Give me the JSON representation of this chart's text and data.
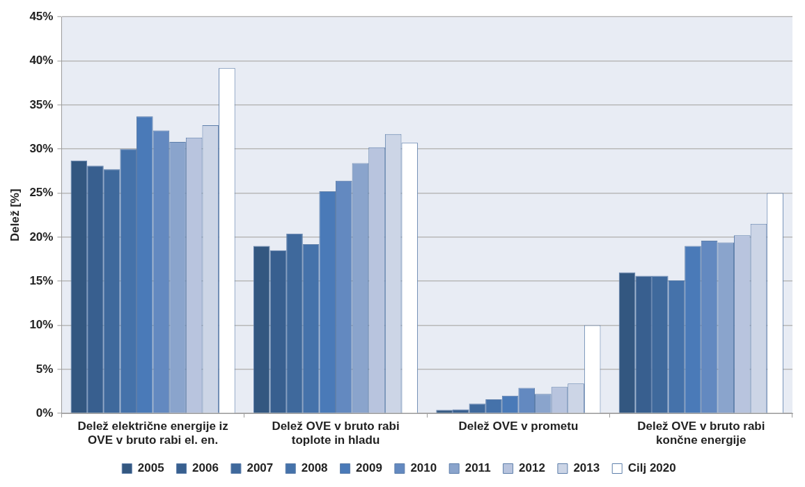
{
  "chart_data": {
    "type": "bar",
    "ylabel": "Delež [%]",
    "categories": [
      "Delež električne energije iz OVE v bruto rabi el. en.",
      "Delež OVE v bruto rabi toplote in hladu",
      "Delež OVE v prometu",
      "Delež OVE v bruto rabi končne energije"
    ],
    "series": [
      {
        "name": "2005",
        "color": "#335780",
        "values": [
          28.7,
          19.0,
          0.4,
          16.0
        ]
      },
      {
        "name": "2006",
        "color": "#385f8f",
        "values": [
          28.1,
          18.5,
          0.45,
          15.6
        ]
      },
      {
        "name": "2007",
        "color": "#3f699c",
        "values": [
          27.7,
          20.4,
          1.1,
          15.6
        ]
      },
      {
        "name": "2008",
        "color": "#4572aa",
        "values": [
          30.0,
          19.2,
          1.6,
          15.1
        ]
      },
      {
        "name": "2009",
        "color": "#4a7ab8",
        "values": [
          33.7,
          25.2,
          2.0,
          19.0
        ]
      },
      {
        "name": "2010",
        "color": "#6389c0",
        "values": [
          32.1,
          26.4,
          2.9,
          19.6
        ]
      },
      {
        "name": "2011",
        "color": "#8aa4cc",
        "values": [
          30.8,
          28.4,
          2.2,
          19.4
        ]
      },
      {
        "name": "2012",
        "color": "#b8c4de",
        "values": [
          31.3,
          30.2,
          3.0,
          20.2
        ]
      },
      {
        "name": "2013",
        "color": "#ccd5e6",
        "values": [
          32.7,
          31.7,
          3.4,
          21.5
        ]
      },
      {
        "name": "Cilj 2020",
        "color": "#ffffff",
        "values": [
          39.2,
          30.7,
          10.0,
          25.0
        ]
      }
    ],
    "ylim": [
      0,
      45
    ],
    "yticks": [
      {
        "value": 0,
        "label": "0%"
      },
      {
        "value": 5,
        "label": "5%"
      },
      {
        "value": 10,
        "label": "10%"
      },
      {
        "value": 15,
        "label": "15%"
      },
      {
        "value": 20,
        "label": "20%"
      },
      {
        "value": 25,
        "label": "25%"
      },
      {
        "value": 30,
        "label": "30%"
      },
      {
        "value": 35,
        "label": "35%"
      },
      {
        "value": 40,
        "label": "40%"
      },
      {
        "value": 45,
        "label": "45%"
      }
    ],
    "grid": "y",
    "legend": "bottom"
  }
}
